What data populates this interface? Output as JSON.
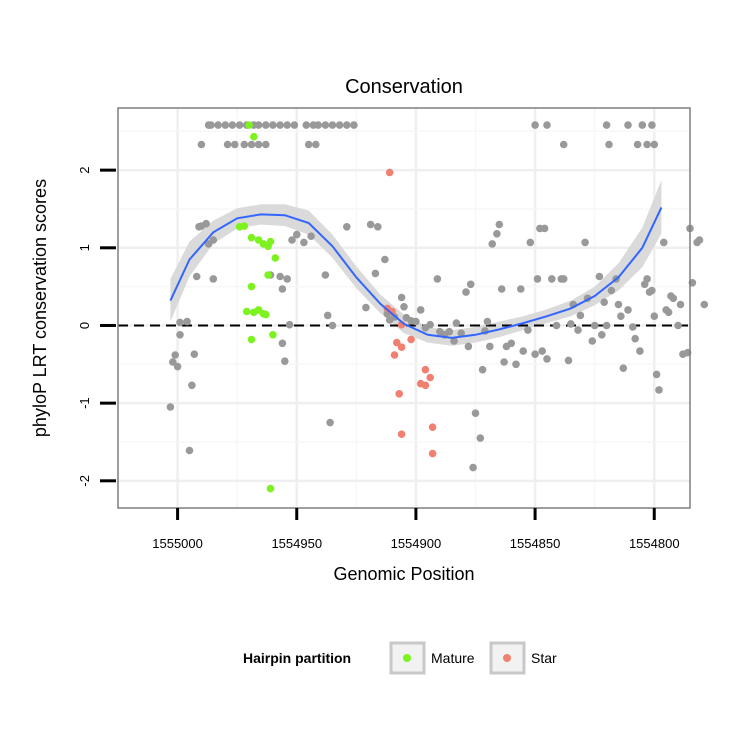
{
  "chart_data": {
    "type": "scatter",
    "title": "Conservation",
    "xlabel": "Genomic Position",
    "ylabel": "phyloP LRT conservation scores",
    "x_reversed": true,
    "xlim": [
      1555025,
      1554785
    ],
    "ylim": [
      -2.35,
      2.8
    ],
    "x_ticks": [
      1555000,
      1554950,
      1554900,
      1554850,
      1554800
    ],
    "x_tick_labels": [
      "1555000",
      "1554950",
      "1554900",
      "1554850",
      "1554800"
    ],
    "y_ticks": [
      -2,
      -1,
      0,
      1,
      2
    ],
    "y_tick_labels": [
      "-2",
      "-1",
      "0",
      "1",
      "2"
    ],
    "reference_line": {
      "y": 0,
      "style": "dashed",
      "color": "#000000"
    },
    "grid": true,
    "legend": {
      "title": "Hairpin partition",
      "placement": "bottom",
      "entries": [
        {
          "label": "Mature",
          "color": "#7cf31f"
        },
        {
          "label": "Star",
          "color": "#f08070"
        }
      ]
    },
    "colors": {
      "other": "#999999",
      "smooth_line": "#3366ff",
      "band": "#d6d6d6"
    },
    "series": [
      {
        "name": "Mature",
        "color": "#7cf31f",
        "points": [
          [
            1554970,
            2.58
          ],
          [
            1554968,
            2.43
          ],
          [
            1554974,
            1.27
          ],
          [
            1554972,
            1.28
          ],
          [
            1554969,
            1.13
          ],
          [
            1554966,
            1.1
          ],
          [
            1554964,
            1.05
          ],
          [
            1554962,
            1.02
          ],
          [
            1554961,
            1.08
          ],
          [
            1554959,
            0.87
          ],
          [
            1554962,
            0.65
          ],
          [
            1554969,
            0.5
          ],
          [
            1554971,
            0.18
          ],
          [
            1554968,
            0.17
          ],
          [
            1554966,
            0.2
          ],
          [
            1554964,
            0.15
          ],
          [
            1554963,
            0.14
          ],
          [
            1554969,
            -0.18
          ],
          [
            1554960,
            -0.12
          ],
          [
            1554961,
            -2.1
          ]
        ]
      },
      {
        "name": "Star",
        "color": "#f08070",
        "points": [
          [
            1554911,
            1.97
          ],
          [
            1554912,
            0.22
          ],
          [
            1554910,
            0.18
          ],
          [
            1554906,
            0.01
          ],
          [
            1554908,
            -0.22
          ],
          [
            1554906,
            -0.28
          ],
          [
            1554902,
            -0.18
          ],
          [
            1554909,
            -0.38
          ],
          [
            1554896,
            -0.57
          ],
          [
            1554894,
            -0.67
          ],
          [
            1554898,
            -0.75
          ],
          [
            1554896,
            -0.77
          ],
          [
            1554893,
            -1.31
          ],
          [
            1554907,
            -0.88
          ],
          [
            1554906,
            -1.4
          ],
          [
            1554893,
            -1.65
          ]
        ]
      },
      {
        "name": "",
        "color": "#999999",
        "points": [
          [
            1555003,
            -1.05
          ],
          [
            1555002,
            -0.47
          ],
          [
            1555001,
            -0.38
          ],
          [
            1555000,
            -0.53
          ],
          [
            1554999,
            -0.12
          ],
          [
            1554999,
            0.04
          ],
          [
            1554996,
            0.05
          ],
          [
            1554995,
            -1.61
          ],
          [
            1554994,
            -0.77
          ],
          [
            1554993,
            -0.37
          ],
          [
            1554992,
            0.63
          ],
          [
            1554991,
            1.27
          ],
          [
            1554990,
            1.28
          ],
          [
            1554988,
            1.31
          ],
          [
            1554990,
            2.33
          ],
          [
            1554987,
            1.05
          ],
          [
            1554985,
            1.1
          ],
          [
            1554985,
            0.6
          ],
          [
            1554987,
            2.58
          ],
          [
            1554986,
            2.58
          ],
          [
            1554983,
            2.58
          ],
          [
            1554980,
            2.58
          ],
          [
            1554977,
            2.58
          ],
          [
            1554974,
            2.58
          ],
          [
            1554971,
            2.58
          ],
          [
            1554968,
            2.58
          ],
          [
            1554966,
            2.58
          ],
          [
            1554963,
            2.58
          ],
          [
            1554960,
            2.58
          ],
          [
            1554957,
            2.58
          ],
          [
            1554954,
            2.58
          ],
          [
            1554951,
            2.58
          ],
          [
            1554979,
            2.33
          ],
          [
            1554976,
            2.33
          ],
          [
            1554972,
            2.33
          ],
          [
            1554969,
            2.33
          ],
          [
            1554966,
            2.33
          ],
          [
            1554963,
            2.33
          ],
          [
            1554961,
            0.65
          ],
          [
            1554957,
            0.63
          ],
          [
            1554954,
            0.6
          ],
          [
            1554956,
            0.47
          ],
          [
            1554956,
            -0.23
          ],
          [
            1554955,
            -0.46
          ],
          [
            1554953,
            0.01
          ],
          [
            1554952,
            1.1
          ],
          [
            1554950,
            1.17
          ],
          [
            1554947,
            1.07
          ],
          [
            1554944,
            1.15
          ],
          [
            1554945,
            2.33
          ],
          [
            1554942,
            2.33
          ],
          [
            1554946,
            2.58
          ],
          [
            1554943,
            2.58
          ],
          [
            1554941,
            2.58
          ],
          [
            1554938,
            2.58
          ],
          [
            1554935,
            2.58
          ],
          [
            1554932,
            2.58
          ],
          [
            1554929,
            2.58
          ],
          [
            1554926,
            2.58
          ],
          [
            1554938,
            0.65
          ],
          [
            1554937,
            0.13
          ],
          [
            1554935,
            0.0
          ],
          [
            1554936,
            -1.25
          ],
          [
            1554929,
            1.27
          ],
          [
            1554921,
            0.23
          ],
          [
            1554919,
            1.3
          ],
          [
            1554917,
            0.67
          ],
          [
            1554916,
            1.27
          ],
          [
            1554913,
            0.85
          ],
          [
            1554912,
            0.15
          ],
          [
            1554911,
            0.07
          ],
          [
            1554909,
            0.11
          ],
          [
            1554906,
            0.36
          ],
          [
            1554905,
            0.24
          ],
          [
            1554904,
            0.1
          ],
          [
            1554902,
            0.06
          ],
          [
            1554900,
            0.05
          ],
          [
            1554898,
            0.2
          ],
          [
            1554896,
            -0.03
          ],
          [
            1554894,
            0.01
          ],
          [
            1554891,
            0.6
          ],
          [
            1554890,
            -0.08
          ],
          [
            1554888,
            -0.12
          ],
          [
            1554886,
            -0.08
          ],
          [
            1554884,
            -0.2
          ],
          [
            1554883,
            0.03
          ],
          [
            1554881,
            -0.1
          ],
          [
            1554879,
            0.43
          ],
          [
            1554878,
            -0.27
          ],
          [
            1554877,
            0.53
          ],
          [
            1554875,
            -1.13
          ],
          [
            1554873,
            -1.45
          ],
          [
            1554876,
            -1.83
          ],
          [
            1554872,
            -0.57
          ],
          [
            1554871,
            -0.07
          ],
          [
            1554870,
            0.05
          ],
          [
            1554869,
            -0.27
          ],
          [
            1554868,
            1.05
          ],
          [
            1554866,
            1.18
          ],
          [
            1554865,
            1.3
          ],
          [
            1554864,
            0.47
          ],
          [
            1554863,
            -0.47
          ],
          [
            1554862,
            -0.27
          ],
          [
            1554860,
            -0.23
          ],
          [
            1554858,
            -0.5
          ],
          [
            1554856,
            0.47
          ],
          [
            1554855,
            -0.33
          ],
          [
            1554853,
            -0.06
          ],
          [
            1554852,
            1.07
          ],
          [
            1554850,
            -0.37
          ],
          [
            1554849,
            0.6
          ],
          [
            1554848,
            1.25
          ],
          [
            1554847,
            -0.33
          ],
          [
            1554846,
            1.25
          ],
          [
            1554845,
            -0.43
          ],
          [
            1554843,
            0.6
          ],
          [
            1554841,
            0.0
          ],
          [
            1554839,
            0.6
          ],
          [
            1554838,
            0.6
          ],
          [
            1554836,
            -0.45
          ],
          [
            1554835,
            0.02
          ],
          [
            1554834,
            0.27
          ],
          [
            1554832,
            -0.06
          ],
          [
            1554831,
            0.13
          ],
          [
            1554829,
            1.07
          ],
          [
            1554828,
            0.35
          ],
          [
            1554826,
            -0.2
          ],
          [
            1554825,
            0.0
          ],
          [
            1554823,
            0.63
          ],
          [
            1554822,
            -0.12
          ],
          [
            1554821,
            0.3
          ],
          [
            1554820,
            0.0
          ],
          [
            1554819,
            2.33
          ],
          [
            1554818,
            0.45
          ],
          [
            1554816,
            0.6
          ],
          [
            1554815,
            0.27
          ],
          [
            1554814,
            0.12
          ],
          [
            1554813,
            -0.55
          ],
          [
            1554811,
            0.2
          ],
          [
            1554809,
            -0.02
          ],
          [
            1554808,
            -0.17
          ],
          [
            1554806,
            -0.33
          ],
          [
            1554804,
            0.53
          ],
          [
            1554803,
            0.6
          ],
          [
            1554802,
            0.43
          ],
          [
            1554801,
            0.45
          ],
          [
            1554800,
            0.12
          ],
          [
            1554799,
            -0.63
          ],
          [
            1554798,
            -0.83
          ],
          [
            1554796,
            1.07
          ],
          [
            1554795,
            0.2
          ],
          [
            1554794,
            0.17
          ],
          [
            1554793,
            0.38
          ],
          [
            1554792,
            0.35
          ],
          [
            1554790,
            0.0
          ],
          [
            1554789,
            0.27
          ],
          [
            1554788,
            -0.37
          ],
          [
            1554786,
            -0.35
          ],
          [
            1554785,
            1.25
          ],
          [
            1554784,
            0.55
          ],
          [
            1554782,
            1.07
          ],
          [
            1554781,
            1.1
          ],
          [
            1554779,
            0.27
          ],
          [
            1554850,
            2.58
          ],
          [
            1554845,
            2.58
          ],
          [
            1554838,
            2.33
          ],
          [
            1554820,
            2.58
          ],
          [
            1554811,
            2.58
          ],
          [
            1554805,
            2.58
          ],
          [
            1554801,
            2.58
          ],
          [
            1554807,
            2.33
          ],
          [
            1554803,
            2.33
          ],
          [
            1554800,
            2.33
          ]
        ]
      }
    ],
    "smooth": {
      "x": [
        1555003,
        1554995,
        1554985,
        1554975,
        1554965,
        1554955,
        1554945,
        1554935,
        1554925,
        1554915,
        1554905,
        1554895,
        1554885,
        1554875,
        1554865,
        1554855,
        1554845,
        1554835,
        1554825,
        1554815,
        1554805,
        1554797
      ],
      "y": [
        0.32,
        0.85,
        1.2,
        1.38,
        1.43,
        1.42,
        1.32,
        1.02,
        0.62,
        0.28,
        0.02,
        -0.12,
        -0.16,
        -0.12,
        -0.05,
        0.03,
        0.12,
        0.22,
        0.38,
        0.62,
        1.0,
        1.52
      ],
      "lower": [
        0.05,
        0.63,
        1.05,
        1.25,
        1.3,
        1.28,
        1.17,
        0.87,
        0.48,
        0.16,
        -0.1,
        -0.22,
        -0.26,
        -0.22,
        -0.15,
        -0.06,
        0.03,
        0.12,
        0.26,
        0.45,
        0.75,
        1.18
      ],
      "upper": [
        0.6,
        1.08,
        1.35,
        1.51,
        1.56,
        1.56,
        1.48,
        1.17,
        0.76,
        0.4,
        0.14,
        -0.02,
        -0.06,
        -0.02,
        0.05,
        0.12,
        0.21,
        0.32,
        0.5,
        0.8,
        1.26,
        1.87
      ]
    }
  }
}
